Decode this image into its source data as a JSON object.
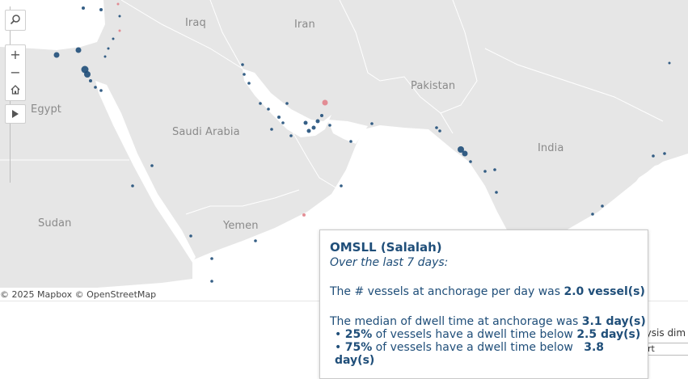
{
  "map": {
    "countries": [
      "Iraq",
      "Iran",
      "Egypt",
      "Saudi Arabia",
      "Pakistan",
      "India",
      "Sudan",
      "Yemen"
    ],
    "attribution": "© 2025 Mapbox  © OpenStreetMap",
    "colors": {
      "land": "#e6e6e6",
      "water": "#ffffff",
      "border": "#ffffff",
      "dot": "#1f4e79",
      "dot_alt": "#e07b85"
    }
  },
  "controls": {
    "search_icon": "search-icon",
    "zoom_in": "+",
    "zoom_out": "−",
    "home_icon": "home-icon",
    "expand_icon": "play-icon"
  },
  "tooltip": {
    "title": "OMSLL (Salalah)",
    "subtitle": "Over the last 7 days:",
    "vessels_prefix": "The # vessels at anchorage per day was ",
    "vessels_value": "2.0 vessel(s)",
    "median_prefix": "The median of dwell time at anchorage was ",
    "median_value": "3.1 day(s)",
    "p25_pct": "25%",
    "p25_mid": " of vessels have a dwell time below ",
    "p25_value": "2.5 day(s)",
    "p75_pct": "75%",
    "p75_mid": " of vessels have a dwell time below ",
    "p75_value": "3.8 day(s)"
  },
  "side_panel": {
    "label": "alysis dim",
    "field_value": "rt"
  }
}
